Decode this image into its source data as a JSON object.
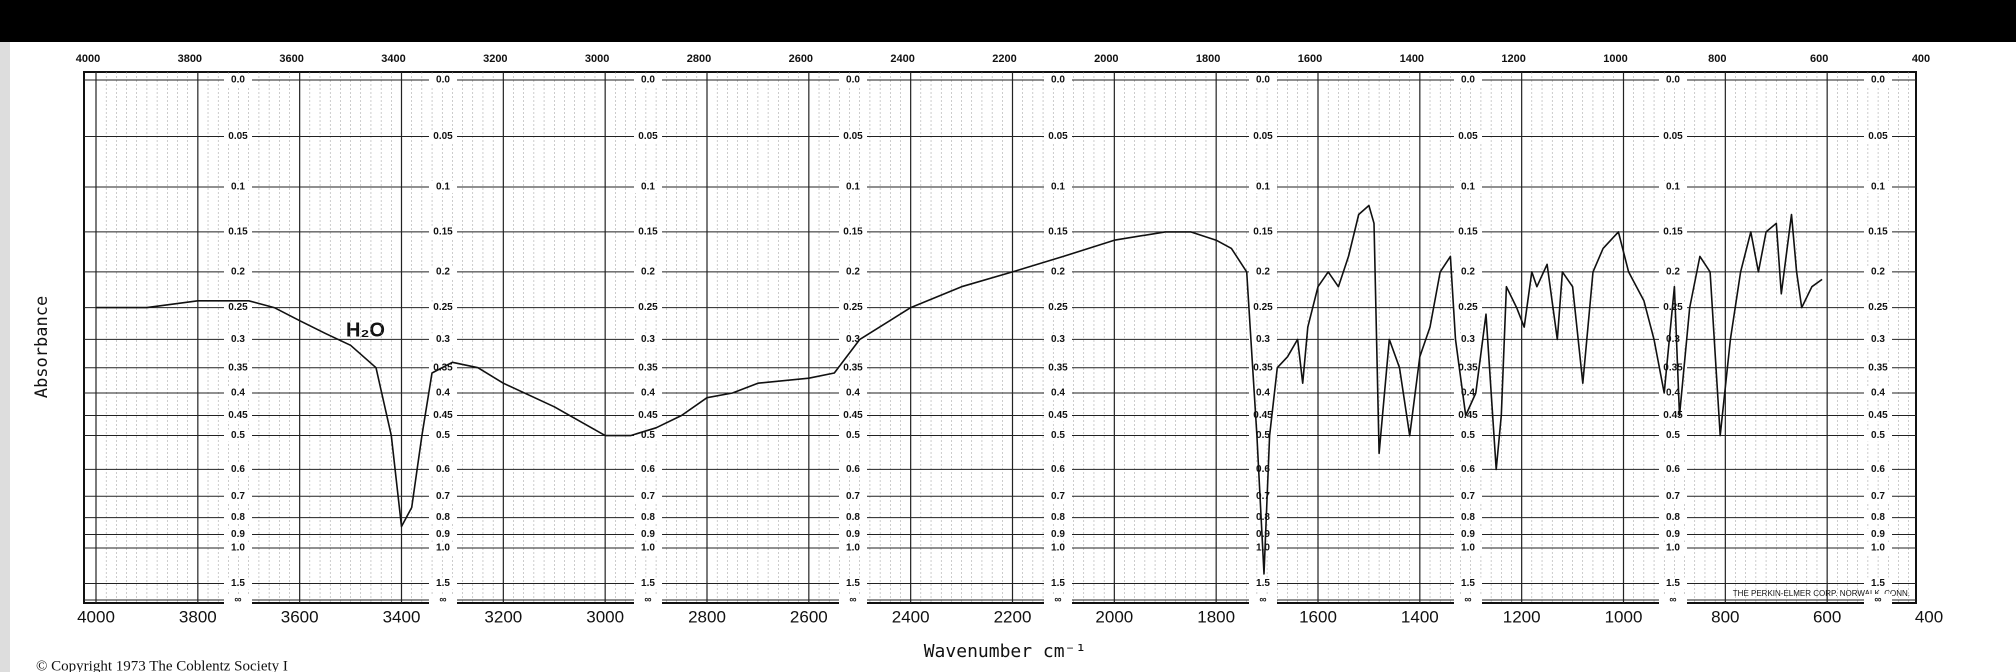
{
  "chart_data": {
    "type": "line",
    "x_label": "Wavenumber cm⁻¹",
    "y_label": "Absorbance",
    "annotation": "H₂O",
    "footer": "THE PERKIN-ELMER CORP. NORWALK, CONN.",
    "copyright": "© Copyright 1973 The Coblentz Society I",
    "color": "#111111",
    "xlim": [
      4000,
      400
    ],
    "xticks": [
      4000,
      3800,
      3600,
      3400,
      3200,
      3000,
      2800,
      2600,
      2400,
      2200,
      2000,
      1800,
      1600,
      1400,
      1200,
      1000,
      800,
      600,
      400
    ],
    "ylim": [
      0,
      null
    ],
    "yticks": [
      {
        "value": 0,
        "label": "0.0"
      },
      0.05,
      0.1,
      0.15,
      0.2,
      0.25,
      0.3,
      0.35,
      0.4,
      0.45,
      0.5,
      0.6,
      0.7,
      0.8,
      0.9,
      {
        "value": 1,
        "label": "1.0"
      },
      1.5,
      {
        "value": null,
        "label": "∞"
      }
    ],
    "grid": true,
    "x": [
      4000,
      3900,
      3800,
      3700,
      3650,
      3600,
      3550,
      3500,
      3450,
      3420,
      3400,
      3380,
      3360,
      3340,
      3300,
      3250,
      3200,
      3100,
      3000,
      2950,
      2900,
      2850,
      2800,
      2750,
      2700,
      2600,
      2550,
      2500,
      2400,
      2300,
      2200,
      2100,
      2000,
      1900,
      1850,
      1800,
      1770,
      1740,
      1720,
      1706,
      1695,
      1680,
      1660,
      1640,
      1630,
      1620,
      1600,
      1580,
      1560,
      1540,
      1520,
      1500,
      1490,
      1480,
      1460,
      1440,
      1420,
      1400,
      1380,
      1360,
      1340,
      1330,
      1310,
      1290,
      1270,
      1250,
      1240,
      1230,
      1210,
      1195,
      1180,
      1170,
      1150,
      1130,
      1120,
      1100,
      1080,
      1060,
      1040,
      1010,
      990,
      960,
      940,
      920,
      900,
      890,
      870,
      850,
      830,
      810,
      790,
      770,
      750,
      735,
      720,
      700,
      690,
      670,
      660,
      650,
      630,
      610
    ],
    "values": [
      0.25,
      0.25,
      0.24,
      0.24,
      0.25,
      0.27,
      0.29,
      0.31,
      0.35,
      0.5,
      0.85,
      0.75,
      0.5,
      0.36,
      0.34,
      0.35,
      0.38,
      0.43,
      0.5,
      0.5,
      0.48,
      0.45,
      0.41,
      0.4,
      0.38,
      0.37,
      0.36,
      0.3,
      0.25,
      0.22,
      0.2,
      0.18,
      0.16,
      0.15,
      0.15,
      0.16,
      0.17,
      0.2,
      0.5,
      1.3,
      0.5,
      0.35,
      0.33,
      0.3,
      0.38,
      0.28,
      0.22,
      0.2,
      0.22,
      0.18,
      0.13,
      0.12,
      0.14,
      0.55,
      0.3,
      0.35,
      0.5,
      0.33,
      0.28,
      0.2,
      0.18,
      0.3,
      0.45,
      0.4,
      0.26,
      0.6,
      0.45,
      0.22,
      0.25,
      0.28,
      0.2,
      0.22,
      0.19,
      0.3,
      0.2,
      0.22,
      0.38,
      0.2,
      0.17,
      0.15,
      0.2,
      0.24,
      0.3,
      0.4,
      0.22,
      0.45,
      0.25,
      0.18,
      0.2,
      0.5,
      0.3,
      0.2,
      0.15,
      0.2,
      0.15,
      0.14,
      0.23,
      0.13,
      0.2,
      0.25,
      0.22,
      0.21
    ]
  }
}
